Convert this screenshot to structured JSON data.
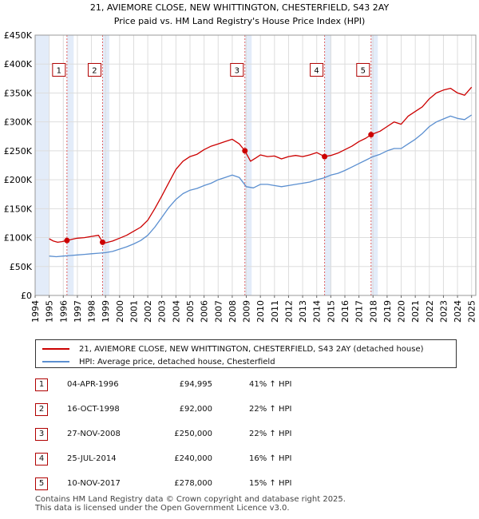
{
  "chart_data": {
    "type": "line",
    "title": "21, AVIEMORE CLOSE, NEW WHITTINGTON, CHESTERFIELD, S43 2AY",
    "subtitle": "Price paid vs. HM Land Registry's House Price Index (HPI)",
    "xlim": [
      1994,
      2025.3
    ],
    "ylim": [
      0,
      450000
    ],
    "x_ticks": [
      "1994",
      "1995",
      "1996",
      "1997",
      "1998",
      "1999",
      "2000",
      "2001",
      "2002",
      "2003",
      "2004",
      "2005",
      "2006",
      "2007",
      "2008",
      "2009",
      "2010",
      "2011",
      "2012",
      "2013",
      "2014",
      "2015",
      "2016",
      "2017",
      "2018",
      "2019",
      "2020",
      "2021",
      "2022",
      "2023",
      "2024",
      "2025"
    ],
    "y_ticks": [
      {
        "value": 0,
        "label": "£0"
      },
      {
        "value": 50000,
        "label": "£50K"
      },
      {
        "value": 100000,
        "label": "£100K"
      },
      {
        "value": 150000,
        "label": "£150K"
      },
      {
        "value": 200000,
        "label": "£200K"
      },
      {
        "value": 250000,
        "label": "£250K"
      },
      {
        "value": 300000,
        "label": "£300K"
      },
      {
        "value": 350000,
        "label": "£350K"
      },
      {
        "value": 400000,
        "label": "£400K"
      },
      {
        "value": 450000,
        "label": "£450K"
      }
    ],
    "grid": true,
    "data_start": 1995.0,
    "series": [
      {
        "name": "21, AVIEMORE CLOSE, NEW WHITTINGTON, CHESTERFIELD, S43 2AY (detached house)",
        "color": "#cc0000",
        "x": [
          1995.0,
          1995.3,
          1995.6,
          1995.9,
          1996.26,
          1996.6,
          1997.0,
          1997.5,
          1998.0,
          1998.5,
          1998.79,
          1999.0,
          1999.5,
          2000.0,
          2000.5,
          2001.0,
          2001.5,
          2002.0,
          2002.5,
          2003.0,
          2003.5,
          2004.0,
          2004.5,
          2005.0,
          2005.5,
          2006.0,
          2006.5,
          2007.0,
          2007.5,
          2008.0,
          2008.5,
          2008.9,
          2009.3,
          2009.7,
          2010.0,
          2010.5,
          2011.0,
          2011.5,
          2012.0,
          2012.5,
          2013.0,
          2013.5,
          2014.0,
          2014.56,
          2015.0,
          2015.5,
          2016.0,
          2016.5,
          2017.0,
          2017.5,
          2017.86,
          2018.5,
          2019.0,
          2019.5,
          2020.0,
          2020.5,
          2021.0,
          2021.5,
          2022.0,
          2022.5,
          2023.0,
          2023.5,
          2024.0,
          2024.5,
          2025.0
        ],
        "values": [
          98000,
          94000,
          92000,
          93000,
          94995,
          97000,
          99000,
          100000,
          102000,
          104000,
          92000,
          91000,
          94000,
          99000,
          104000,
          111000,
          118000,
          130000,
          150000,
          172000,
          195000,
          218000,
          232000,
          240000,
          244000,
          252000,
          258000,
          262000,
          266000,
          270000,
          262000,
          250000,
          232000,
          238000,
          243000,
          240000,
          241000,
          236000,
          240000,
          242000,
          240000,
          243000,
          247000,
          240000,
          242000,
          246000,
          252000,
          258000,
          266000,
          272000,
          278000,
          284000,
          292000,
          300000,
          296000,
          310000,
          318000,
          326000,
          340000,
          350000,
          355000,
          358000,
          350000,
          346000,
          360000
        ]
      },
      {
        "name": "HPI: Average price, detached house, Chesterfield",
        "color": "#5b8fd0",
        "x": [
          1995.0,
          1995.5,
          1996.0,
          1996.5,
          1997.0,
          1997.5,
          1998.0,
          1998.5,
          1999.0,
          1999.5,
          2000.0,
          2000.5,
          2001.0,
          2001.5,
          2002.0,
          2002.5,
          2003.0,
          2003.5,
          2004.0,
          2004.5,
          2005.0,
          2005.5,
          2006.0,
          2006.5,
          2007.0,
          2007.5,
          2008.0,
          2008.5,
          2009.0,
          2009.5,
          2010.0,
          2010.5,
          2011.0,
          2011.5,
          2012.0,
          2012.5,
          2013.0,
          2013.5,
          2014.0,
          2014.5,
          2015.0,
          2015.5,
          2016.0,
          2016.5,
          2017.0,
          2017.5,
          2018.0,
          2018.5,
          2019.0,
          2019.5,
          2020.0,
          2020.5,
          2021.0,
          2021.5,
          2022.0,
          2022.5,
          2023.0,
          2023.5,
          2024.0,
          2024.5,
          2025.0
        ],
        "values": [
          68000,
          67000,
          68000,
          69000,
          70000,
          71000,
          72000,
          73000,
          74000,
          76000,
          80000,
          84000,
          89000,
          95000,
          104000,
          118000,
          135000,
          152000,
          166000,
          176000,
          182000,
          185000,
          190000,
          194000,
          200000,
          204000,
          208000,
          204000,
          188000,
          186000,
          192000,
          192000,
          190000,
          188000,
          190000,
          192000,
          194000,
          196000,
          200000,
          203000,
          208000,
          211000,
          216000,
          222000,
          228000,
          234000,
          240000,
          244000,
          250000,
          254000,
          254000,
          262000,
          270000,
          280000,
          292000,
          300000,
          305000,
          310000,
          306000,
          304000,
          312000
        ]
      }
    ],
    "sales": [
      {
        "label": "1",
        "x": 1996.26,
        "price": 94995
      },
      {
        "label": "2",
        "x": 1998.79,
        "price": 92000
      },
      {
        "label": "3",
        "x": 2008.9,
        "price": 250000
      },
      {
        "label": "4",
        "x": 2014.56,
        "price": 240000
      },
      {
        "label": "5",
        "x": 2017.86,
        "price": 278000
      }
    ],
    "marker_label_value": 390000,
    "colors": {
      "property": "#cc0000",
      "hpi": "#5b8fd0",
      "shade": "#e3ecf9",
      "vline": "#e06060"
    }
  },
  "legend": {
    "property_label": "21, AVIEMORE CLOSE, NEW WHITTINGTON, CHESTERFIELD, S43 2AY (detached house)",
    "hpi_label": "HPI: Average price, detached house, Chesterfield"
  },
  "sales_table": [
    {
      "num": "1",
      "date": "04-APR-1996",
      "price": "£94,995",
      "hpi": "41% ↑ HPI"
    },
    {
      "num": "2",
      "date": "16-OCT-1998",
      "price": "£92,000",
      "hpi": "22% ↑ HPI"
    },
    {
      "num": "3",
      "date": "27-NOV-2008",
      "price": "£250,000",
      "hpi": "22% ↑ HPI"
    },
    {
      "num": "4",
      "date": "25-JUL-2014",
      "price": "£240,000",
      "hpi": "16% ↑ HPI"
    },
    {
      "num": "5",
      "date": "10-NOV-2017",
      "price": "£278,000",
      "hpi": "15% ↑ HPI"
    }
  ],
  "footer": {
    "line1": "Contains HM Land Registry data © Crown copyright and database right 2025.",
    "line2": "This data is licensed under the Open Government Licence v3.0."
  }
}
